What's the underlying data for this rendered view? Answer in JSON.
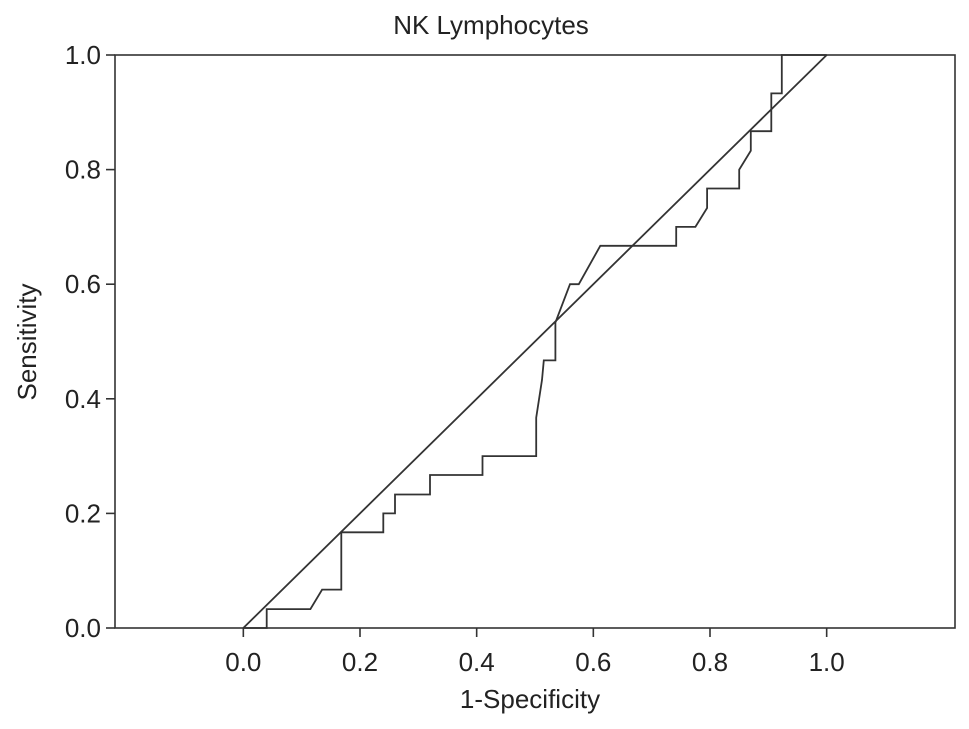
{
  "chart_data": {
    "type": "line",
    "title": "NK Lymphocytes",
    "xlabel": "1-Specificity",
    "ylabel": "Sensitivity",
    "xlim": [
      -0.22,
      1.22
    ],
    "ylim": [
      0.0,
      1.0
    ],
    "x_ticks": [
      "0.0",
      "0.2",
      "0.4",
      "0.6",
      "0.8",
      "1.0"
    ],
    "y_ticks": [
      "0.0",
      "0.2",
      "0.4",
      "0.6",
      "0.8",
      "1.0"
    ],
    "grid": false,
    "series": [
      {
        "role": "roc-curve",
        "points": [
          [
            0.0,
            0.0
          ],
          [
            0.04,
            0.0
          ],
          [
            0.04,
            0.033
          ],
          [
            0.115,
            0.033
          ],
          [
            0.135,
            0.067
          ],
          [
            0.168,
            0.067
          ],
          [
            0.168,
            0.167
          ],
          [
            0.24,
            0.167
          ],
          [
            0.24,
            0.2
          ],
          [
            0.26,
            0.2
          ],
          [
            0.26,
            0.233
          ],
          [
            0.32,
            0.233
          ],
          [
            0.32,
            0.267
          ],
          [
            0.41,
            0.267
          ],
          [
            0.41,
            0.3
          ],
          [
            0.502,
            0.3
          ],
          [
            0.502,
            0.367
          ],
          [
            0.512,
            0.433
          ],
          [
            0.515,
            0.467
          ],
          [
            0.535,
            0.467
          ],
          [
            0.535,
            0.533
          ],
          [
            0.56,
            0.6
          ],
          [
            0.575,
            0.6
          ],
          [
            0.612,
            0.667
          ],
          [
            0.742,
            0.667
          ],
          [
            0.742,
            0.7
          ],
          [
            0.775,
            0.7
          ],
          [
            0.795,
            0.733
          ],
          [
            0.795,
            0.767
          ],
          [
            0.85,
            0.767
          ],
          [
            0.85,
            0.8
          ],
          [
            0.87,
            0.833
          ],
          [
            0.87,
            0.867
          ],
          [
            0.905,
            0.867
          ],
          [
            0.905,
            0.933
          ],
          [
            0.923,
            0.933
          ],
          [
            0.923,
            1.0
          ],
          [
            1.0,
            1.0
          ]
        ]
      },
      {
        "role": "reference-diagonal",
        "points": [
          [
            0.0,
            0.0
          ],
          [
            1.0,
            1.0
          ]
        ]
      }
    ]
  }
}
